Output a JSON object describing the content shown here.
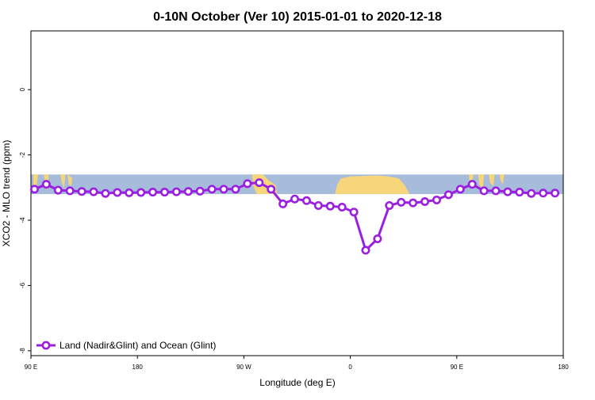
{
  "chart_data": {
    "type": "line",
    "title": "0-10N October (Ver 10)   2015-01-01 to 2020-12-18",
    "xlabel": "Longitude (deg E)",
    "ylabel": "XCO2 - MLO trend (ppm)",
    "x_ticks": [
      {
        "value": 90,
        "label": "90 E"
      },
      {
        "value": 180,
        "label": "180"
      },
      {
        "value": 270,
        "label": "90 W"
      },
      {
        "value": 360,
        "label": "0"
      },
      {
        "value": 450,
        "label": "90 E"
      },
      {
        "value": 540,
        "label": "180"
      }
    ],
    "y_ticks": [
      {
        "value": 0,
        "label": "0"
      },
      {
        "value": -2,
        "label": "-2"
      },
      {
        "value": -4,
        "label": "-4"
      },
      {
        "value": -6,
        "label": "-6"
      },
      {
        "value": -8,
        "label": "-8"
      }
    ],
    "xlim": [
      90,
      540
    ],
    "ylim": [
      -8.15,
      1.8
    ],
    "map_band": {
      "lat_range": [
        "0",
        "10N"
      ],
      "ylim": [
        -3.2,
        -2.6
      ]
    },
    "legend": {
      "position": "bottom-left"
    },
    "grid": false,
    "series": [
      {
        "name": "Land (Nadir&Glint) and Ocean (Glint)",
        "color": "#9B1FE0",
        "x": [
          93,
          103,
          113,
          123,
          133,
          143,
          153,
          163,
          173,
          183,
          193,
          203,
          213,
          223,
          233,
          243,
          253,
          263,
          273,
          283,
          293,
          303,
          313,
          323,
          333,
          343,
          353,
          363,
          373,
          383,
          393,
          403,
          413,
          423,
          433,
          443,
          453,
          463,
          473,
          483,
          493,
          503,
          513,
          523,
          533
        ],
        "y": [
          -3.05,
          -2.9,
          -3.08,
          -3.1,
          -3.12,
          -3.13,
          -3.18,
          -3.15,
          -3.16,
          -3.15,
          -3.14,
          -3.14,
          -3.13,
          -3.12,
          -3.11,
          -3.05,
          -3.05,
          -3.05,
          -2.88,
          -2.85,
          -3.05,
          -3.5,
          -3.35,
          -3.4,
          -3.55,
          -3.57,
          -3.6,
          -3.75,
          -4.92,
          -4.57,
          -3.55,
          -3.45,
          -3.47,
          -3.43,
          -3.38,
          -3.22,
          -3.05,
          -2.9,
          -3.1,
          -3.1,
          -3.13,
          -3.14,
          -3.18,
          -3.17,
          -3.17
        ]
      }
    ]
  }
}
